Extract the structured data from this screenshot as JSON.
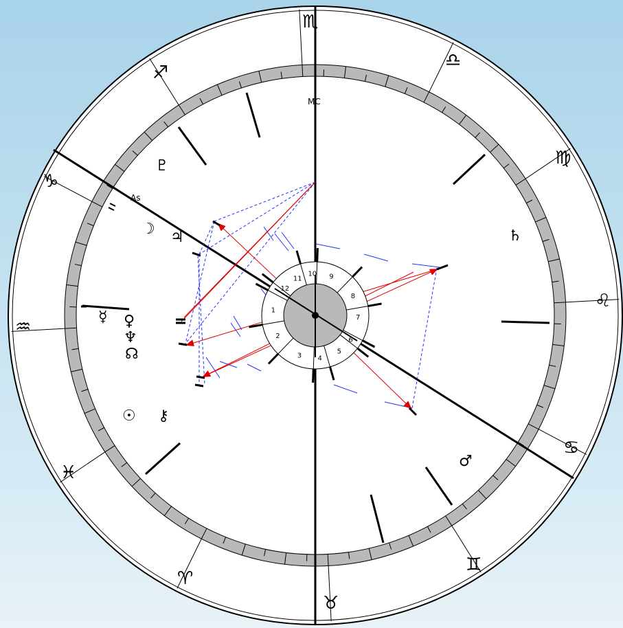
{
  "chart": {
    "axes": {
      "mc_label": "MC",
      "asc_label": "As"
    },
    "signs": [
      {
        "name": "scorpio",
        "glyph": "♏"
      },
      {
        "name": "libra",
        "glyph": "♎"
      },
      {
        "name": "virgo",
        "glyph": "♍"
      },
      {
        "name": "leo",
        "glyph": "♌"
      },
      {
        "name": "cancer",
        "glyph": "♋"
      },
      {
        "name": "gemini",
        "glyph": "♊"
      },
      {
        "name": "taurus",
        "glyph": "♉"
      },
      {
        "name": "aries",
        "glyph": "♈"
      },
      {
        "name": "pisces",
        "glyph": "♓"
      },
      {
        "name": "aquarius",
        "glyph": "♒"
      },
      {
        "name": "capricorn",
        "glyph": "♑"
      },
      {
        "name": "sagittarius",
        "glyph": "♐"
      }
    ],
    "planets": [
      {
        "name": "pluto",
        "glyph": "♇"
      },
      {
        "name": "moon",
        "glyph": "☽"
      },
      {
        "name": "jupiter",
        "glyph": "♃"
      },
      {
        "name": "saturn",
        "glyph": "♄"
      },
      {
        "name": "mercury",
        "glyph": "☿"
      },
      {
        "name": "venus",
        "glyph": "♀"
      },
      {
        "name": "neptune",
        "glyph": "♆"
      },
      {
        "name": "north-node",
        "glyph": "☊"
      },
      {
        "name": "sun",
        "glyph": "☉"
      },
      {
        "name": "chiron",
        "glyph": "⚷"
      },
      {
        "name": "mars",
        "glyph": "♂"
      }
    ],
    "houses": [
      "1",
      "2",
      "3",
      "4",
      "5",
      "6",
      "7",
      "8",
      "9",
      "10",
      "11",
      "12"
    ]
  }
}
